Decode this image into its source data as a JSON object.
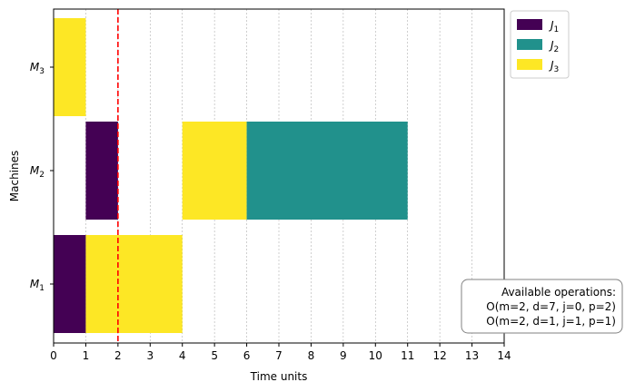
{
  "chart_data": {
    "type": "gantt",
    "xlabel": "Time units",
    "ylabel": "Machines",
    "xlim": [
      0,
      14
    ],
    "xticks": [
      0,
      1,
      2,
      3,
      4,
      5,
      6,
      7,
      8,
      9,
      10,
      11,
      12,
      13,
      14
    ],
    "vertical_grid": true,
    "machines": [
      {
        "id": "M1",
        "base": "M",
        "sub": "1"
      },
      {
        "id": "M2",
        "base": "M",
        "sub": "2"
      },
      {
        "id": "M3",
        "base": "M",
        "sub": "3"
      }
    ],
    "jobs": [
      {
        "id": "J1",
        "base": "J",
        "sub": "1",
        "color": "#440154"
      },
      {
        "id": "J2",
        "base": "J",
        "sub": "2",
        "color": "#21918c"
      },
      {
        "id": "J3",
        "base": "J",
        "sub": "3",
        "color": "#fde725"
      }
    ],
    "legend_position": "upper-right-outside",
    "tasks": [
      {
        "machine": "M1",
        "job": "J1",
        "start": 0,
        "end": 1
      },
      {
        "machine": "M1",
        "job": "J3",
        "start": 1,
        "end": 4
      },
      {
        "machine": "M2",
        "job": "J1",
        "start": 1,
        "end": 2
      },
      {
        "machine": "M2",
        "job": "J3",
        "start": 4,
        "end": 6
      },
      {
        "machine": "M2",
        "job": "J2",
        "start": 6,
        "end": 11
      },
      {
        "machine": "M3",
        "job": "J3",
        "start": 0,
        "end": 1
      }
    ],
    "current_time": 2,
    "current_time_color": "#ff0000",
    "annotation": {
      "title": "Available operations:",
      "lines": [
        "O(m=2, d=7, j=0, p=2)",
        "O(m=2, d=1, j=1, p=1)"
      ]
    }
  }
}
